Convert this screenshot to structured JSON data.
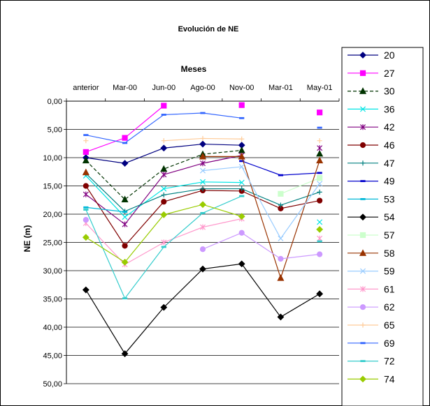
{
  "chart_data": {
    "type": "line",
    "title": "Evolución de NE",
    "xlabel": "Meses",
    "ylabel": "NE (m)",
    "y_reversed": true,
    "ylim": [
      0,
      50
    ],
    "y_ticks": [
      "0,00",
      "5,00",
      "10,00",
      "15,00",
      "20,00",
      "25,00",
      "30,00",
      "35,00",
      "40,00",
      "45,00",
      "50,00"
    ],
    "x_position": "top",
    "categories": [
      "anterior",
      "Mar-00",
      "Jun-00",
      "Ago-00",
      "Nov-00",
      "Mar-01",
      "May-01"
    ],
    "grid": "horizontal",
    "legend_position": "right",
    "series": [
      {
        "name": "20",
        "color": "#000080",
        "marker": "diamond",
        "dash": "",
        "values": [
          10.0,
          11.0,
          8.3,
          7.6,
          7.8,
          null,
          null
        ]
      },
      {
        "name": "27",
        "color": "#FF00FF",
        "marker": "square",
        "dash": "",
        "values": [
          9.0,
          6.5,
          0.8,
          null,
          0.7,
          null,
          2.0
        ]
      },
      {
        "name": "30",
        "color": "#003300",
        "marker": "triangle",
        "dash": "5,3",
        "values": [
          10.5,
          17.4,
          12.0,
          9.4,
          8.7,
          null,
          9.3
        ]
      },
      {
        "name": "36",
        "color": "#00E5E5",
        "marker": "x",
        "dash": "",
        "values": [
          13.2,
          20.5,
          15.5,
          14.3,
          14.4,
          null,
          21.4
        ]
      },
      {
        "name": "42",
        "color": "#800080",
        "marker": "star",
        "dash": "",
        "values": [
          16.5,
          21.8,
          13.0,
          11.0,
          9.6,
          null,
          8.3
        ]
      },
      {
        "name": "46",
        "color": "#800000",
        "marker": "circle",
        "dash": "",
        "values": [
          15.0,
          25.6,
          17.8,
          15.8,
          15.9,
          19.0,
          17.6
        ]
      },
      {
        "name": "47",
        "color": "#008080",
        "marker": "plus",
        "dash": "",
        "values": [
          12.8,
          19.5,
          16.6,
          15.5,
          15.5,
          18.4,
          16.1
        ]
      },
      {
        "name": "49",
        "color": "#0000CC",
        "marker": "dash",
        "dash": "",
        "values": [
          null,
          null,
          null,
          null,
          10.6,
          13.1,
          12.7
        ]
      },
      {
        "name": "53",
        "color": "#00B8D8",
        "marker": "dash",
        "dash": "",
        "values": [
          18.8,
          19.6,
          null,
          null,
          null,
          null,
          null
        ]
      },
      {
        "name": "54",
        "color": "#000000",
        "marker": "diamond",
        "dash": "",
        "values": [
          33.4,
          44.7,
          36.5,
          29.7,
          28.8,
          38.2,
          34.1
        ]
      },
      {
        "name": "57",
        "color": "#CCFFCC",
        "marker": "square",
        "dash": "",
        "values": [
          null,
          null,
          null,
          null,
          null,
          16.4,
          13.6
        ]
      },
      {
        "name": "58",
        "color": "#993300",
        "marker": "triangle",
        "dash": "",
        "values": [
          12.6,
          null,
          null,
          9.8,
          9.8,
          31.3,
          10.5
        ]
      },
      {
        "name": "59",
        "color": "#99CCFF",
        "marker": "x",
        "dash": "",
        "values": [
          null,
          null,
          null,
          12.3,
          11.6,
          24.3,
          14.6
        ]
      },
      {
        "name": "61",
        "color": "#FF99CC",
        "marker": "star",
        "dash": "",
        "values": [
          21.6,
          28.9,
          25.0,
          22.3,
          20.8,
          null,
          24.3
        ]
      },
      {
        "name": "62",
        "color": "#CC99FF",
        "marker": "circle",
        "dash": "",
        "values": [
          21.0,
          null,
          null,
          26.2,
          23.3,
          27.9,
          27.1
        ]
      },
      {
        "name": "65",
        "color": "#FFCC99",
        "marker": "plus",
        "dash": "",
        "values": [
          7.0,
          null,
          7.0,
          6.6,
          6.7,
          null,
          7.0
        ]
      },
      {
        "name": "69",
        "color": "#3366FF",
        "marker": "dash",
        "dash": "",
        "values": [
          6.0,
          7.4,
          2.4,
          2.1,
          3.0,
          null,
          4.7
        ]
      },
      {
        "name": "72",
        "color": "#33CCCC",
        "marker": "dash",
        "dash": "",
        "values": [
          19.2,
          34.9,
          25.8,
          19.8,
          16.8,
          null,
          24.8
        ]
      },
      {
        "name": "74",
        "color": "#99CC00",
        "marker": "diamond",
        "dash": "",
        "values": [
          24.1,
          28.5,
          20.1,
          18.3,
          20.4,
          null,
          22.7
        ]
      }
    ]
  }
}
